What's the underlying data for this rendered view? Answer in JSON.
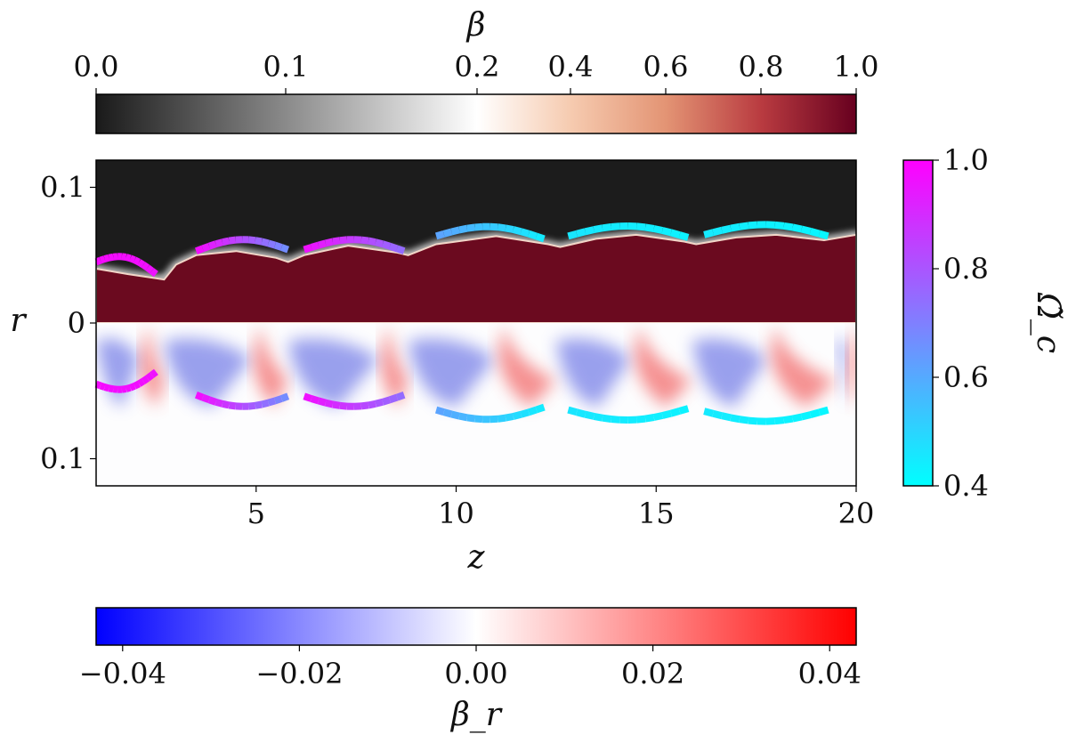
{
  "chart_data": {
    "type": "heatmap",
    "panels": {
      "top": {
        "field": "β",
        "half": "upper"
      },
      "bottom": {
        "field": "β_r",
        "half": "lower"
      }
    },
    "x_axis": {
      "label": "z",
      "range": [
        1,
        20
      ],
      "ticks": [
        5,
        10,
        15,
        20
      ],
      "tick_labels": [
        "5",
        "10",
        "15",
        "20"
      ]
    },
    "y_axis": {
      "label": "r",
      "range": [
        -0.12,
        0.12
      ],
      "ticks": [
        0.1,
        0,
        -0.1
      ],
      "tick_labels": [
        "0.1",
        "0",
        "0.1"
      ]
    },
    "colorbars": [
      {
        "label": "β",
        "position": "top",
        "ticks": [
          {
            "value": 0.0,
            "label": "0.0"
          },
          {
            "value": 0.1,
            "label": "0.1"
          },
          {
            "value": 0.2,
            "label": "0.2"
          },
          {
            "value": 0.4,
            "label": "0.4"
          },
          {
            "value": 0.6,
            "label": "0.6"
          },
          {
            "value": 0.8,
            "label": "0.8"
          },
          {
            "value": 1.0,
            "label": "1.0"
          }
        ],
        "stops": [
          {
            "v": 0.0,
            "color": "#1a1a1a"
          },
          {
            "v": 0.1,
            "color": "#8a8a8a"
          },
          {
            "v": 0.2,
            "color": "#ffffff"
          },
          {
            "v": 0.4,
            "color": "#f6cbb0"
          },
          {
            "v": 0.6,
            "color": "#e39474"
          },
          {
            "v": 0.8,
            "color": "#b93b40"
          },
          {
            "v": 1.0,
            "color": "#67001f"
          }
        ]
      },
      {
        "label": "β_r",
        "position": "bottom",
        "range": [
          -0.043,
          0.043
        ],
        "ticks": [
          {
            "value": -0.04,
            "label": "−0.04"
          },
          {
            "value": -0.02,
            "label": "−0.02"
          },
          {
            "value": 0.0,
            "label": "0.00"
          },
          {
            "value": 0.02,
            "label": "0.02"
          },
          {
            "value": 0.04,
            "label": "0.04"
          }
        ],
        "colors": [
          "#0000ff",
          "#ffffff",
          "#ff0000"
        ]
      },
      {
        "label": "Ω̃_c",
        "position": "right",
        "range": [
          0.4,
          1.0
        ],
        "ticks": [
          {
            "value": 1.0,
            "label": "1.0"
          },
          {
            "value": 0.8,
            "label": "0.8"
          },
          {
            "value": 0.6,
            "label": "0.6"
          },
          {
            "value": 0.4,
            "label": "0.4"
          }
        ],
        "colors": [
          "#00ffff",
          "#ff00ff"
        ]
      }
    ],
    "shock_arcs": [
      {
        "z0": 1.0,
        "z1": 2.5,
        "r_start": 0.045,
        "r_end": 0.036,
        "omega": [
          0.98,
          0.96
        ]
      },
      {
        "z0": 3.5,
        "z1": 5.8,
        "r_start": 0.053,
        "r_end": 0.054,
        "omega": [
          0.98,
          0.66
        ]
      },
      {
        "z0": 6.2,
        "z1": 8.7,
        "r_start": 0.054,
        "r_end": 0.053,
        "omega": [
          0.97,
          0.74
        ]
      },
      {
        "z0": 9.5,
        "z1": 12.2,
        "r_start": 0.064,
        "r_end": 0.062,
        "omega": [
          0.62,
          0.44
        ]
      },
      {
        "z0": 12.8,
        "z1": 15.8,
        "r_start": 0.064,
        "r_end": 0.063,
        "omega": [
          0.46,
          0.43
        ]
      },
      {
        "z0": 16.2,
        "z1": 19.3,
        "r_start": 0.065,
        "r_end": 0.064,
        "omega": [
          0.45,
          0.42
        ]
      }
    ],
    "jet_boundary": [
      [
        1.0,
        0.04
      ],
      [
        1.8,
        0.036
      ],
      [
        2.5,
        0.033
      ],
      [
        2.7,
        0.032
      ],
      [
        3.0,
        0.043
      ],
      [
        3.5,
        0.05
      ],
      [
        4.5,
        0.053
      ],
      [
        5.5,
        0.048
      ],
      [
        5.8,
        0.045
      ],
      [
        6.2,
        0.05
      ],
      [
        7.3,
        0.057
      ],
      [
        8.5,
        0.052
      ],
      [
        8.8,
        0.05
      ],
      [
        9.5,
        0.058
      ],
      [
        11.0,
        0.064
      ],
      [
        12.3,
        0.058
      ],
      [
        12.6,
        0.056
      ],
      [
        13.5,
        0.062
      ],
      [
        14.5,
        0.065
      ],
      [
        15.7,
        0.06
      ],
      [
        16.0,
        0.058
      ],
      [
        17.0,
        0.063
      ],
      [
        18.0,
        0.065
      ],
      [
        19.2,
        0.061
      ],
      [
        20.0,
        0.065
      ]
    ],
    "cells": [
      {
        "z0": 1.0,
        "z1": 2.7,
        "apex": 2.3
      },
      {
        "z0": 2.7,
        "z1": 5.8,
        "apex": 5.1
      },
      {
        "z0": 5.8,
        "z1": 8.8,
        "apex": 8.3
      },
      {
        "z0": 8.8,
        "z1": 12.5,
        "apex": 11.2
      },
      {
        "z0": 12.5,
        "z1": 15.9,
        "apex": 14.6
      },
      {
        "z0": 15.9,
        "z1": 19.5,
        "apex": 18.0
      },
      {
        "z0": 19.5,
        "z1": 20.0,
        "apex": 20.0
      }
    ]
  }
}
